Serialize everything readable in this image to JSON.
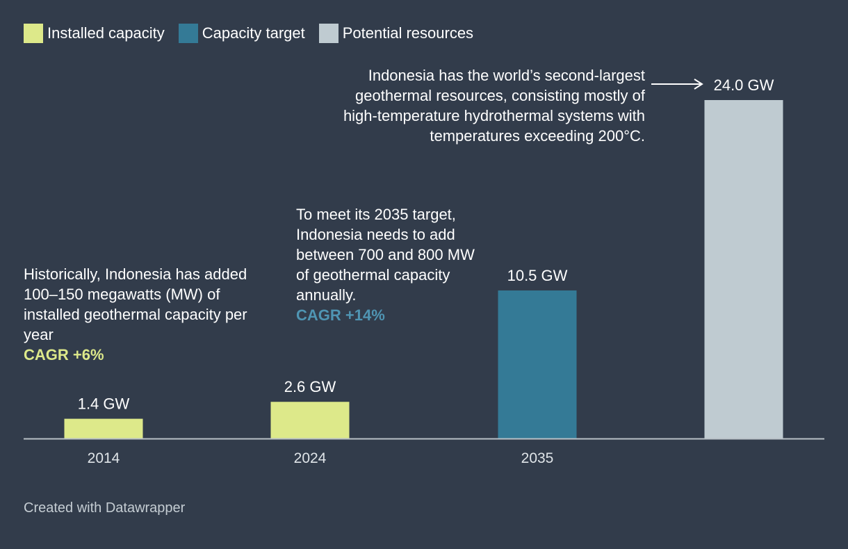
{
  "legend": [
    {
      "label": "Installed capacity",
      "color": "#dde98a"
    },
    {
      "label": "Capacity target",
      "color": "#347a96"
    },
    {
      "label": "Potential resources",
      "color": "#bfcbd1"
    }
  ],
  "notes": {
    "historical": {
      "text": "Historically, Indonesia has added 100–150 megawatts (MW) of installed geothermal capacity per year",
      "cagr": "CAGR +6%",
      "cagr_color": "#dde98a"
    },
    "target": {
      "text": "To meet its 2035 target, Indonesia needs to add between 700 and 800 MW of geothermal capacity annually.",
      "cagr": "CAGR +14%",
      "cagr_color": "#4f95b3"
    },
    "resources": {
      "text": "Indonesia has the world’s second-largest geothermal resources, consisting mostly of high-temperature hydrothermal systems with temperatures exceeding 200°C."
    }
  },
  "footer": "Created with Datawrapper",
  "chart_data": {
    "type": "bar",
    "categories": [
      "2014",
      "2024",
      "2035",
      ""
    ],
    "values": [
      1.4,
      2.6,
      10.5,
      24.0
    ],
    "value_labels": [
      "1.4 GW",
      "2.6 GW",
      "10.5 GW",
      "24.0 GW"
    ],
    "series_of_bar": [
      "Installed capacity",
      "Installed capacity",
      "Capacity target",
      "Potential resources"
    ],
    "colors": [
      "#dde98a",
      "#dde98a",
      "#347a96",
      "#bfcbd1"
    ],
    "ylabel": "GW",
    "ylim": [
      0,
      24.0
    ],
    "grid": false,
    "legend_position": "top-left"
  }
}
